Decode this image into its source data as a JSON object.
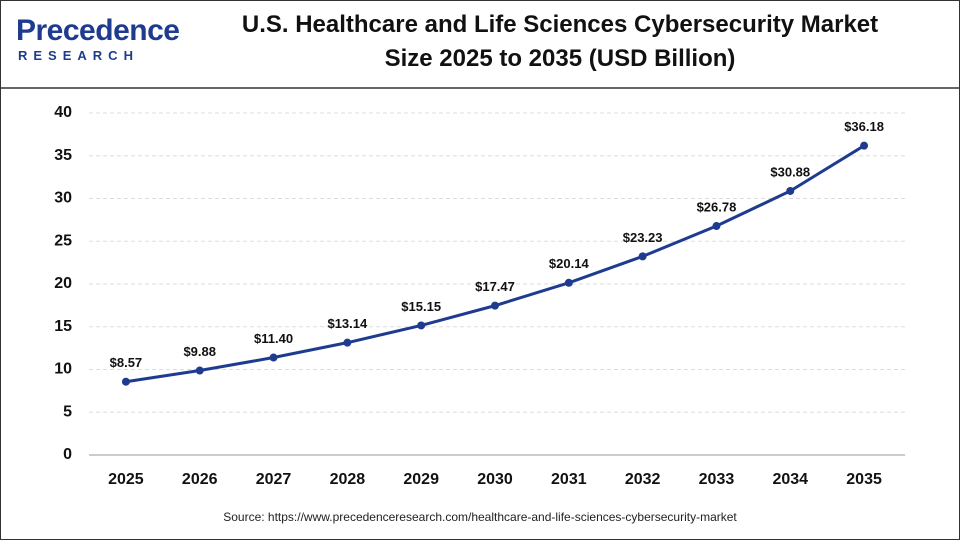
{
  "logo": {
    "name": "Precedence",
    "tagline": "RESEARCH"
  },
  "chart_data": {
    "type": "line",
    "title": "U.S. Healthcare and Life Sciences Cybersecurity Market Size 2025 to 2035 (USD Billion)",
    "categories": [
      "2025",
      "2026",
      "2027",
      "2028",
      "2029",
      "2030",
      "2031",
      "2032",
      "2033",
      "2034",
      "2035"
    ],
    "values": [
      8.57,
      9.88,
      11.4,
      13.14,
      15.15,
      17.47,
      20.14,
      23.23,
      26.78,
      30.88,
      36.18
    ],
    "value_labels": [
      "$8.57",
      "$9.88",
      "$11.40",
      "$13.14",
      "$15.15",
      "$17.47",
      "$20.14",
      "$23.23",
      "$26.78",
      "$30.88",
      "$36.18"
    ],
    "color": "#1f3b8f",
    "ylim": [
      0,
      40
    ],
    "yticks": [
      0,
      5,
      10,
      15,
      20,
      25,
      30,
      35,
      40
    ],
    "grid": true,
    "source": "Source: https://www.precedenceresearch.com/healthcare-and-life-sciences-cybersecurity-market"
  }
}
